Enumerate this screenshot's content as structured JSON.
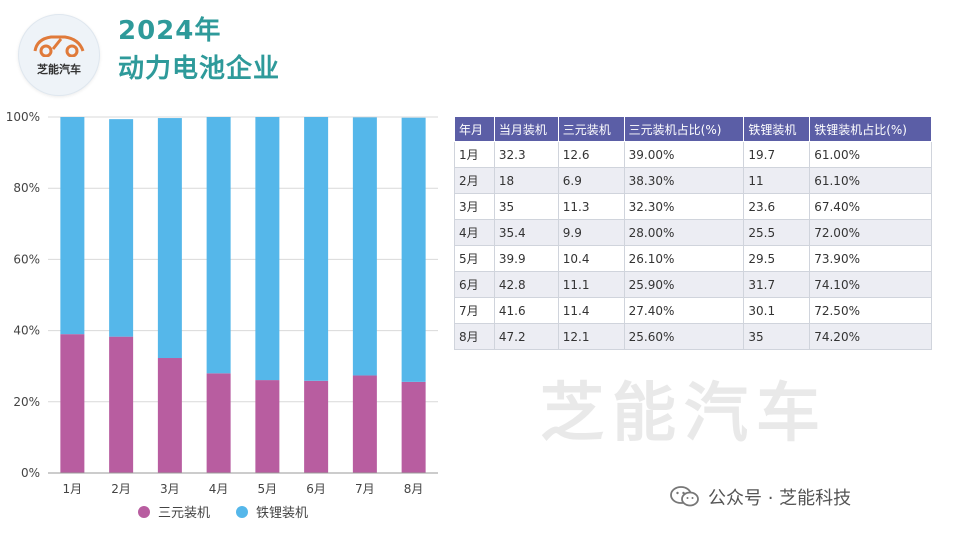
{
  "brand": {
    "logo_text": "芝能汽车",
    "watermark_text": "芝能汽车",
    "footer_text": "公众号 · 芝能科技"
  },
  "header": {
    "title_line1": "2024年",
    "title_line2": "动力电池企业"
  },
  "colors": {
    "ternary": "#b85da0",
    "lfp": "#55b7ea",
    "table_header": "#5b5ea6",
    "title": "#2e9a9a"
  },
  "chart_data": {
    "type": "bar",
    "stacked": true,
    "percent": true,
    "categories": [
      "1月",
      "2月",
      "3月",
      "4月",
      "5月",
      "6月",
      "7月",
      "8月"
    ],
    "series": [
      {
        "name": "三元装机",
        "values": [
          39.0,
          38.3,
          32.3,
          28.0,
          26.1,
          25.9,
          27.4,
          25.6
        ]
      },
      {
        "name": "铁锂装机",
        "values": [
          61.0,
          61.1,
          67.4,
          72.0,
          73.9,
          74.1,
          72.5,
          74.2
        ]
      }
    ],
    "yticks": [
      "0%",
      "20%",
      "40%",
      "60%",
      "80%",
      "100%"
    ],
    "ylim": [
      0,
      100
    ],
    "legend_position": "bottom"
  },
  "table": {
    "headers": [
      "年月",
      "当月装机",
      "三元装机",
      "三元装机占比(%)",
      "铁锂装机",
      "铁锂装机占比(%)"
    ],
    "rows": [
      [
        "1月",
        "32.3",
        "12.6",
        "39.00%",
        "19.7",
        "61.00%"
      ],
      [
        "2月",
        "18",
        "6.9",
        "38.30%",
        "11",
        "61.10%"
      ],
      [
        "3月",
        "35",
        "11.3",
        "32.30%",
        "23.6",
        "67.40%"
      ],
      [
        "4月",
        "35.4",
        "9.9",
        "28.00%",
        "25.5",
        "72.00%"
      ],
      [
        "5月",
        "39.9",
        "10.4",
        "26.10%",
        "29.5",
        "73.90%"
      ],
      [
        "6月",
        "42.8",
        "11.1",
        "25.90%",
        "31.7",
        "74.10%"
      ],
      [
        "7月",
        "41.6",
        "11.4",
        "27.40%",
        "30.1",
        "72.50%"
      ],
      [
        "8月",
        "47.2",
        "12.1",
        "25.60%",
        "35",
        "74.20%"
      ]
    ]
  }
}
